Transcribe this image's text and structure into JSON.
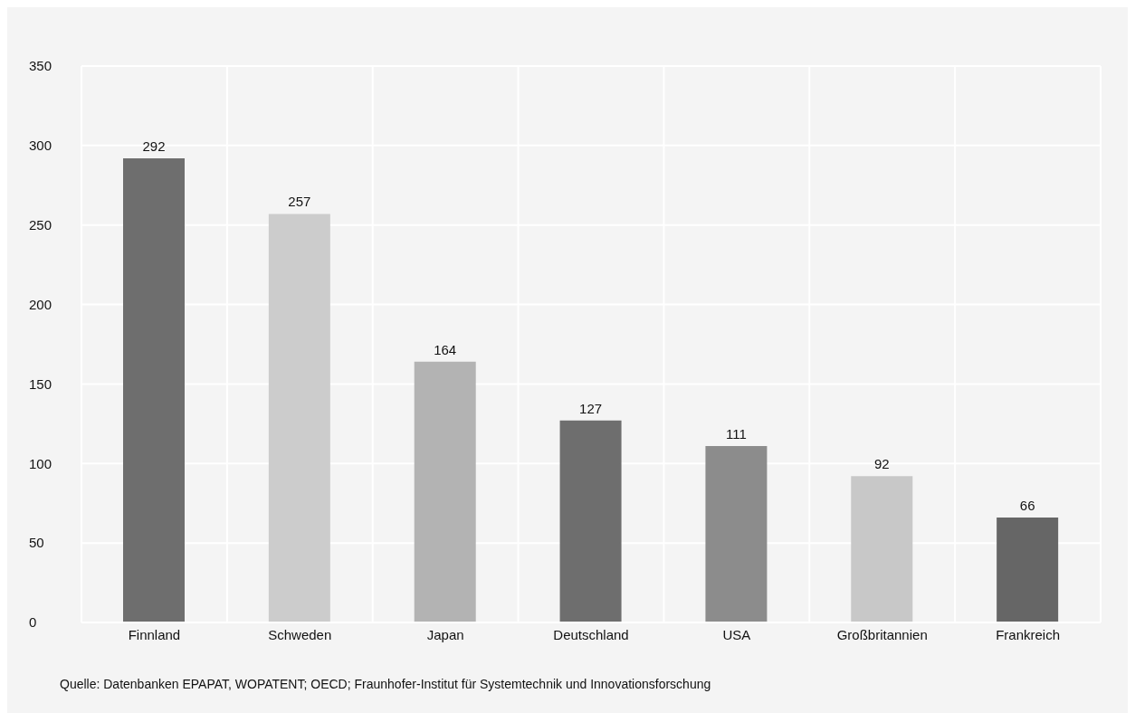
{
  "chart_data": {
    "type": "bar",
    "categories": [
      "Finnland",
      "Schweden",
      "Japan",
      "Deutschland",
      "USA",
      "Großbritannien",
      "Frankreich"
    ],
    "values": [
      292,
      257,
      164,
      127,
      111,
      92,
      66
    ],
    "colors": [
      "#6e6e6e",
      "#cccccc",
      "#b3b3b3",
      "#6e6e6e",
      "#8c8c8c",
      "#c8c8c8",
      "#666666"
    ],
    "ylim": [
      0,
      350
    ],
    "yticks": [
      0,
      50,
      100,
      150,
      200,
      250,
      300,
      350
    ],
    "grid": true,
    "data_labels": true,
    "annotations": [
      "Quelle: Datenbanken EPAPAT, WOPATENT; OECD; Fraunhofer-Institut für Systemtechnik und Innovationsforschung"
    ]
  }
}
